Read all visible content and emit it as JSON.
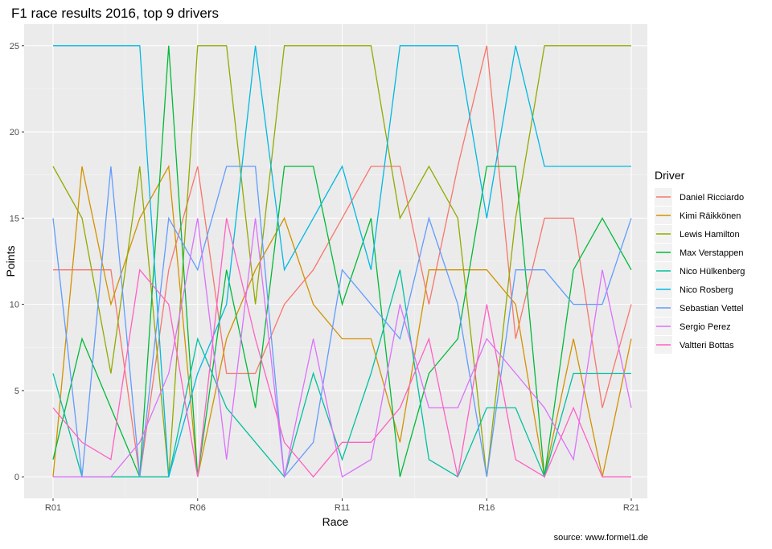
{
  "chart_data": {
    "type": "line",
    "title": "F1 race results 2016, top 9 drivers",
    "xlabel": "Race",
    "ylabel": "Points",
    "caption": "source: www.formel1.de",
    "legend_title": "Driver",
    "legend_position": "right",
    "x": [
      "R01",
      "R02",
      "R03",
      "R04",
      "R05",
      "R06",
      "R07",
      "R08",
      "R09",
      "R10",
      "R11",
      "R12",
      "R13",
      "R14",
      "R15",
      "R16",
      "R17",
      "R18",
      "R19",
      "R20",
      "R21"
    ],
    "x_ticks": [
      "R01",
      "R06",
      "R11",
      "R16",
      "R21"
    ],
    "y_ticks": [
      0,
      5,
      10,
      15,
      20,
      25
    ],
    "ylim": [
      -1.25,
      26.25
    ],
    "grid": true,
    "series": [
      {
        "name": "Daniel Ricciardo",
        "color": "#F8766D",
        "values": [
          12,
          12,
          12,
          0,
          12,
          18,
          6,
          6,
          10,
          12,
          15,
          18,
          18,
          10,
          18,
          25,
          8,
          15,
          15,
          4,
          10
        ]
      },
      {
        "name": "Kimi Räikkönen",
        "color": "#D39200",
        "values": [
          0,
          18,
          10,
          15,
          18,
          0,
          8,
          12,
          15,
          10,
          8,
          8,
          2,
          12,
          12,
          12,
          10,
          0,
          8,
          0,
          8
        ]
      },
      {
        "name": "Lewis Hamilton",
        "color": "#93AA00",
        "values": [
          18,
          15,
          6,
          18,
          0,
          25,
          25,
          10,
          25,
          25,
          25,
          25,
          15,
          18,
          15,
          0,
          15,
          25,
          25,
          25,
          25
        ]
      },
      {
        "name": "Max Verstappen",
        "color": "#00BA38",
        "values": [
          1,
          8,
          4,
          0,
          25,
          0,
          12,
          4,
          18,
          18,
          10,
          15,
          0,
          6,
          8,
          18,
          18,
          0,
          12,
          15,
          12
        ]
      },
      {
        "name": "Nico Hülkenberg",
        "color": "#00C19F",
        "values": [
          6,
          0,
          0,
          0,
          0,
          8,
          4,
          2,
          0,
          6,
          1,
          6,
          12,
          1,
          0,
          4,
          4,
          0,
          6,
          6,
          6
        ]
      },
      {
        "name": "Nico Rosberg",
        "color": "#00B9E3",
        "values": [
          25,
          25,
          25,
          25,
          0,
          6,
          10,
          25,
          12,
          15,
          18,
          12,
          25,
          25,
          25,
          15,
          25,
          18,
          18,
          18,
          18
        ]
      },
      {
        "name": "Sebastian Vettel",
        "color": "#619CFF",
        "values": [
          15,
          0,
          18,
          0,
          15,
          12,
          18,
          18,
          0,
          2,
          12,
          10,
          8,
          15,
          10,
          0,
          12,
          12,
          10,
          10,
          15
        ]
      },
      {
        "name": "Sergio Perez",
        "color": "#DB72FB",
        "values": [
          0,
          0,
          0,
          2,
          6,
          15,
          1,
          15,
          0,
          8,
          0,
          1,
          10,
          4,
          4,
          8,
          6,
          4,
          1,
          12,
          4
        ]
      },
      {
        "name": "Valtteri Bottas",
        "color": "#FF61C3",
        "values": [
          4,
          2,
          1,
          12,
          10,
          0,
          15,
          8,
          2,
          0,
          2,
          2,
          4,
          8,
          0,
          10,
          1,
          0,
          4,
          0,
          0
        ]
      }
    ]
  }
}
